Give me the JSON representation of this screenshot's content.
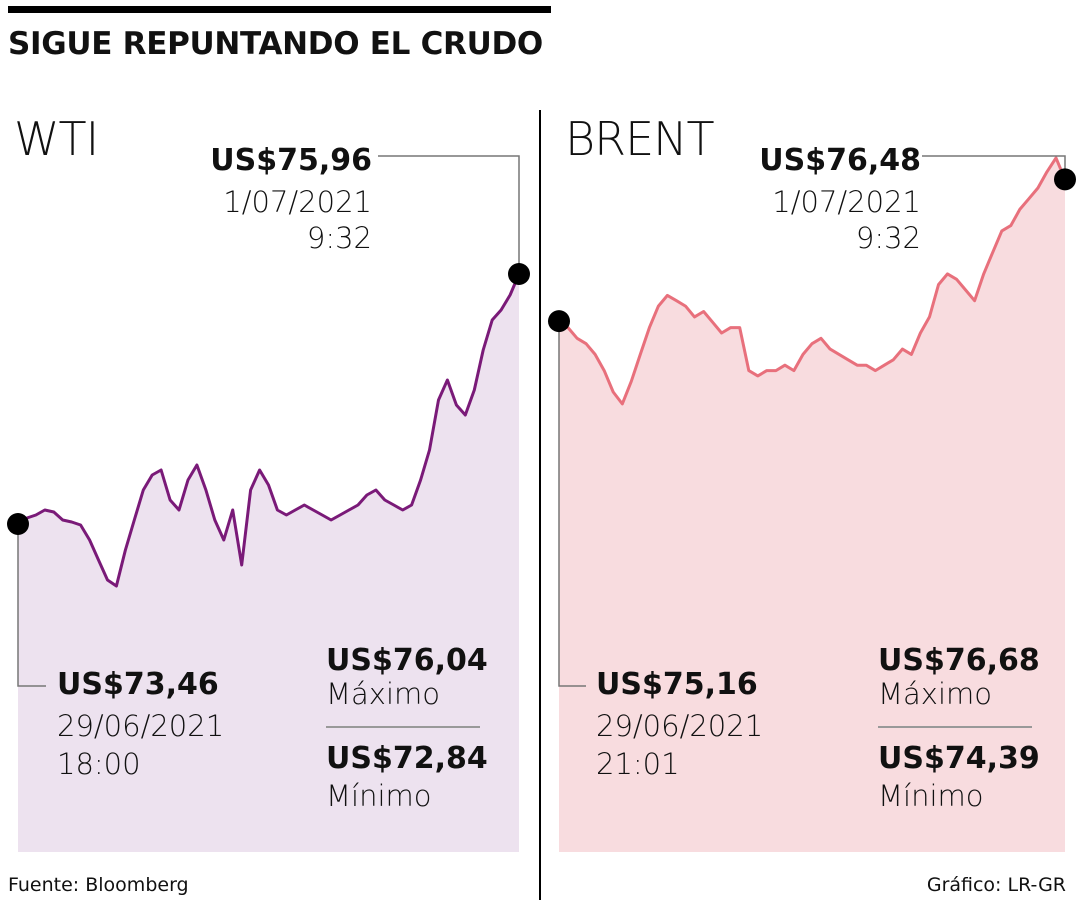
{
  "title": "SIGUE REPUNTANDO EL CRUDO",
  "source": "Fuente: Bloomberg",
  "credit": "Gráfico: LR-GR",
  "colors": {
    "wti_line": "#7a1a78",
    "wti_fill": "#ede2ef",
    "brent_line": "#e8707c",
    "brent_fill": "#f8dcdf"
  },
  "chart_data": [
    {
      "type": "area",
      "series_label": "WTI",
      "ylim": [
        72.5,
        76.4
      ],
      "x_start": "29/06/2021 18:00",
      "x_end": "1/07/2021 9:32",
      "start": {
        "value": "US$73,46",
        "date": "29/06/2021",
        "time": "18:00"
      },
      "end": {
        "value": "US$75,96",
        "date": "1/07/2021",
        "time": "9:32"
      },
      "max": {
        "value": "US$76,04",
        "label": "Máximo"
      },
      "min": {
        "value": "US$72,84",
        "label": "Mínimo"
      },
      "values": [
        73.46,
        73.52,
        73.55,
        73.6,
        73.58,
        73.5,
        73.48,
        73.45,
        73.3,
        73.1,
        72.9,
        72.84,
        73.2,
        73.5,
        73.8,
        73.95,
        74.0,
        73.7,
        73.6,
        73.9,
        74.05,
        73.8,
        73.5,
        73.3,
        73.6,
        73.05,
        73.8,
        74.0,
        73.85,
        73.6,
        73.55,
        73.6,
        73.65,
        73.6,
        73.55,
        73.5,
        73.55,
        73.6,
        73.65,
        73.75,
        73.8,
        73.7,
        73.65,
        73.6,
        73.65,
        73.9,
        74.2,
        74.7,
        74.9,
        74.65,
        74.55,
        74.8,
        75.2,
        75.5,
        75.6,
        75.75,
        75.96
      ]
    },
    {
      "type": "area",
      "series_label": "BRENT",
      "ylim": [
        74.1,
        76.8
      ],
      "x_start": "29/06/2021 21:01",
      "x_end": "1/07/2021 9:32",
      "start": {
        "value": "US$75,16",
        "date": "29/06/2021",
        "time": "21:01"
      },
      "end": {
        "value": "US$76,48",
        "date": "1/07/2021",
        "time": "9:32"
      },
      "max": {
        "value": "US$76,68",
        "label": "Máximo"
      },
      "min": {
        "value": "US$74,39",
        "label": "Mínimo"
      },
      "values": [
        75.16,
        75.1,
        75.0,
        74.95,
        74.85,
        74.7,
        74.5,
        74.39,
        74.6,
        74.85,
        75.1,
        75.3,
        75.4,
        75.35,
        75.3,
        75.2,
        75.25,
        75.15,
        75.05,
        75.1,
        75.1,
        74.7,
        74.65,
        74.7,
        74.7,
        74.75,
        74.7,
        74.85,
        74.95,
        75.0,
        74.9,
        74.85,
        74.8,
        74.75,
        74.75,
        74.7,
        74.75,
        74.8,
        74.9,
        74.85,
        75.05,
        75.2,
        75.5,
        75.6,
        75.55,
        75.45,
        75.35,
        75.6,
        75.8,
        76.0,
        76.05,
        76.2,
        76.3,
        76.4,
        76.55,
        76.68,
        76.48
      ]
    }
  ]
}
